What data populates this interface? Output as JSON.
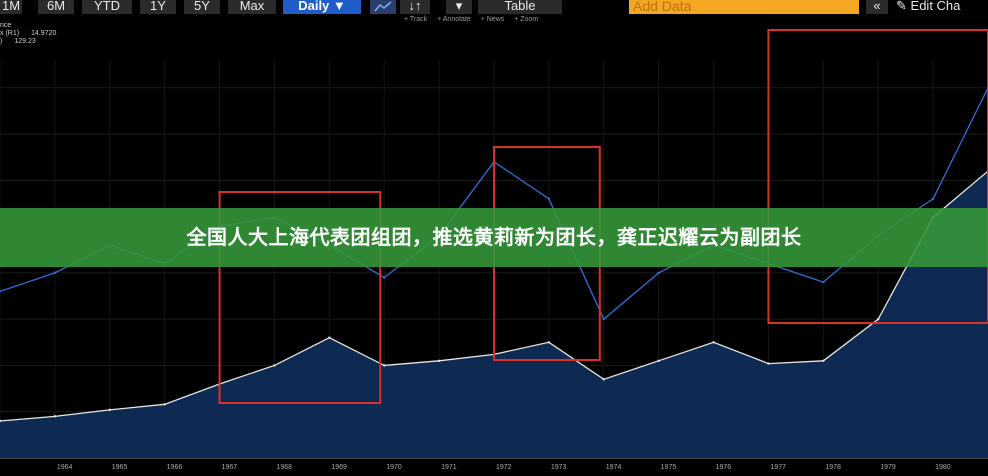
{
  "toolbar": {
    "ranges": [
      "1M",
      "6M",
      "YTD",
      "1Y",
      "5Y",
      "Max"
    ],
    "interval": "Daily ▼",
    "line_icon": "line-chart-icon",
    "compare_icon": "↓↑",
    "more_icon": "▾",
    "table_label": "Table",
    "add_data_placeholder": "Add Data",
    "collapse_icon": "«",
    "edit_icon": "pencil-icon",
    "edit_label": "Edit Cha"
  },
  "subtools": [
    "+ Track",
    "+ Annotate",
    "+ News",
    "+ Zoom"
  ],
  "legend": {
    "title": "rice",
    "row1_label": "x (R1)",
    "row1_value": "14.9720",
    "row2_label": ")",
    "row2_value": "129.23"
  },
  "banner": {
    "text": "全国人大上海代表团组团，推选黄莉新为团长，龚正迟耀云为副团长"
  },
  "x_axis": {
    "labels": [
      "1964",
      "1965",
      "1966",
      "1967",
      "1968",
      "1969",
      "1970",
      "1971",
      "1972",
      "1973",
      "1974",
      "1975",
      "1976",
      "1977",
      "1978",
      "1979",
      "1980"
    ]
  },
  "colors": {
    "area_fill": "#0f2a52",
    "white_series": "#e6e6e6",
    "blue_series": "#2f6fd6",
    "highlight_box": "#d9302a",
    "banner": "#34963a",
    "accent": "#1f5ec9"
  },
  "chart_data": {
    "type": "line",
    "x": [
      "1963",
      "1964",
      "1965",
      "1966",
      "1967",
      "1968",
      "1969",
      "1970",
      "1971",
      "1972",
      "1973",
      "1974",
      "1975",
      "1976",
      "1977",
      "1978",
      "1979",
      "1980",
      "1981"
    ],
    "series": [
      {
        "values": [
          0.4,
          0.45,
          0.52,
          0.58,
          0.8,
          1.0,
          1.3,
          1.0,
          1.05,
          1.12,
          1.25,
          0.85,
          1.05,
          1.25,
          1.02,
          1.05,
          1.5,
          2.6,
          3.1
        ]
      },
      {
        "values": [
          1.8,
          2.0,
          2.3,
          2.1,
          2.5,
          2.6,
          2.3,
          1.95,
          2.4,
          3.2,
          2.8,
          1.5,
          2.0,
          2.3,
          2.1,
          1.9,
          2.4,
          2.8,
          4.0
        ]
      }
    ],
    "highlight_ranges": [
      {
        "x_start": "1967",
        "x_end": "1970"
      },
      {
        "x_start": "1972",
        "x_end": "1974"
      },
      {
        "x_start": "1977",
        "x_end": "1981"
      }
    ]
  }
}
